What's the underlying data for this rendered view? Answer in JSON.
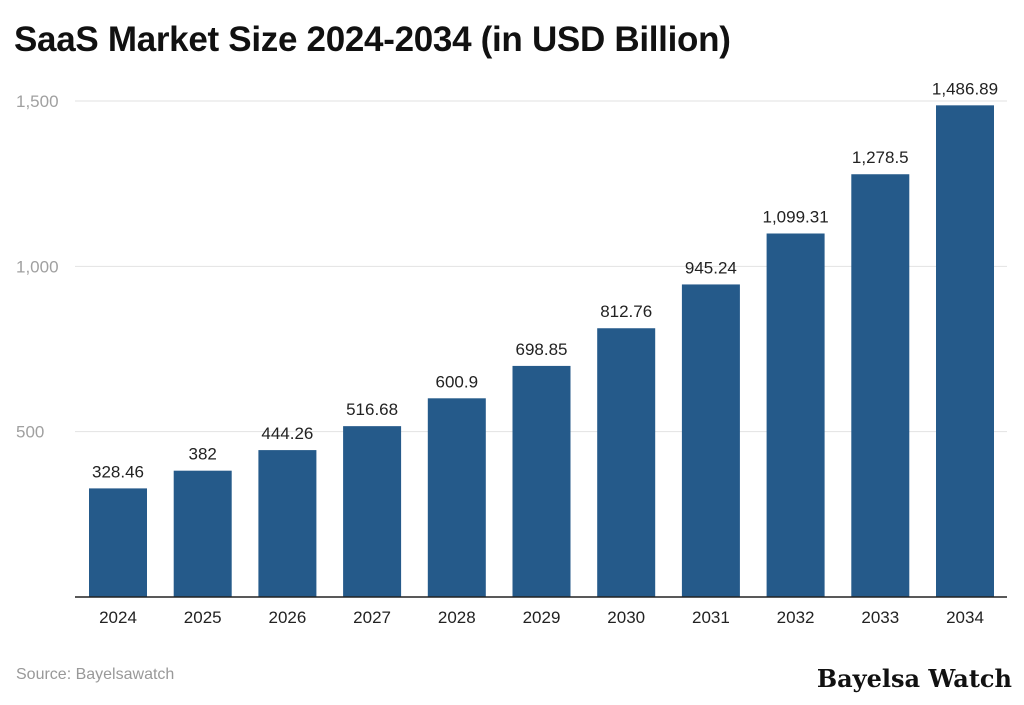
{
  "chart_data": {
    "type": "bar",
    "title": "SaaS Market Size 2024-2034 (in USD Billion)",
    "xlabel": "",
    "ylabel": "",
    "categories": [
      "2024",
      "2025",
      "2026",
      "2027",
      "2028",
      "2029",
      "2030",
      "2031",
      "2032",
      "2033",
      "2034"
    ],
    "values": [
      328.46,
      382,
      444.26,
      516.68,
      600.9,
      698.85,
      812.76,
      945.24,
      1099.31,
      1278.5,
      1486.89
    ],
    "data_labels": [
      "328.46",
      "382",
      "444.26",
      "516.68",
      "600.9",
      "698.85",
      "812.76",
      "945.24",
      "1,099.31",
      "1,278.5",
      "1,486.89"
    ],
    "ylim": [
      0,
      1500
    ],
    "yticks": [
      500,
      1000,
      1500
    ],
    "ytick_labels": [
      "500",
      "1,000",
      "1,500"
    ],
    "grid": true,
    "bar_color": "#255a8a"
  },
  "footer": {
    "source": "Source: Bayelsawatch",
    "brand": "Bayelsa Watch"
  }
}
